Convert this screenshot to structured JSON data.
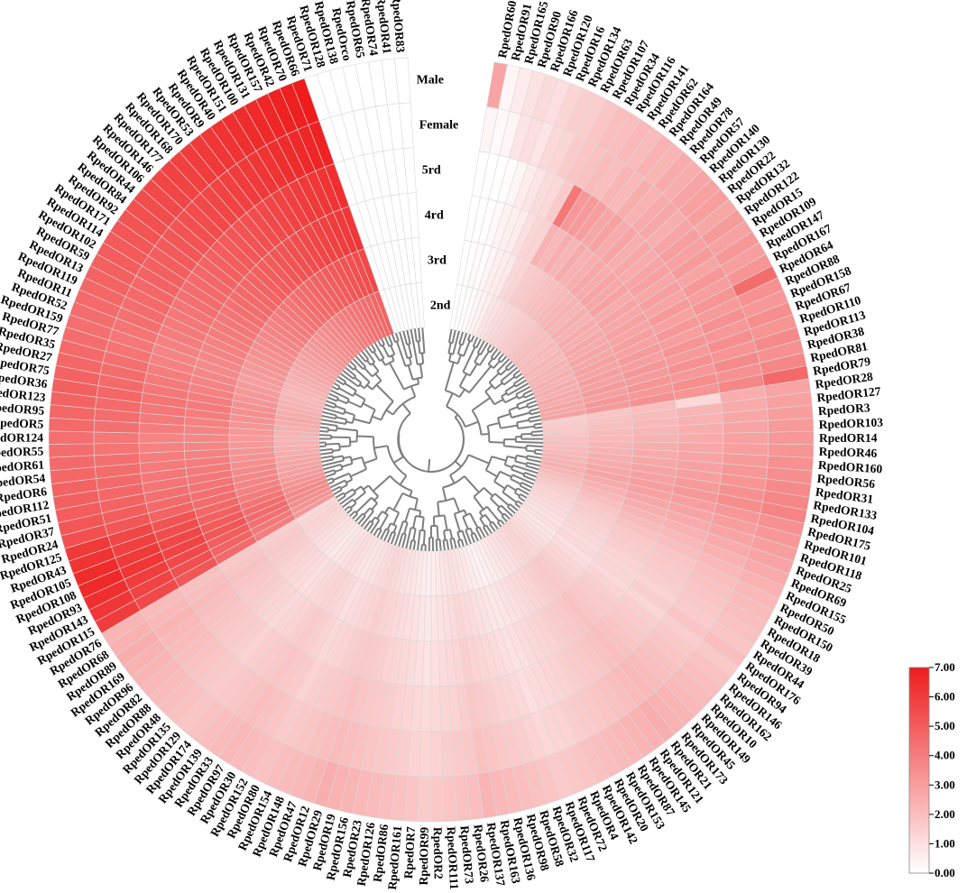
{
  "chart_data": {
    "type": "heatmap",
    "layout": "circular",
    "tracks": [
      "2nd",
      "3rd",
      "4rd",
      "5rd",
      "Female",
      "Male"
    ],
    "legend": {
      "min": 0,
      "max": 7,
      "ticks": [
        "0.00",
        "1.00",
        "2.00",
        "3.00",
        "4.00",
        "5.00",
        "6.00",
        "7.00"
      ],
      "low_color": "#ffffff",
      "high_color": "#ee1c1c",
      "placement": "bottom-right"
    },
    "genes": [
      "RpedOR60",
      "RpedOR91",
      "RpedOR165",
      "RpedOR90",
      "RpedOR166",
      "RpedOR120",
      "RpedOR16",
      "RpedOR134",
      "RpedOR63",
      "RpedOR107",
      "RpedOR34",
      "RpedOR116",
      "RpedOR141",
      "RpedOR62",
      "RpedOR164",
      "RpedOR49",
      "RpedOR78",
      "RpedOR57",
      "RpedOR140",
      "RpedOR130",
      "RpedOR22",
      "RpedOR132",
      "RpedOR122",
      "RpedOR15",
      "RpedOR109",
      "RpedOR147",
      "RpedOR167",
      "RpedOR64",
      "RpedOR88",
      "RpedOR158",
      "RpedOR67",
      "RpedOR110",
      "RpedOR113",
      "RpedOR38",
      "RpedOR81",
      "RpedOR79",
      "RpedOR28",
      "RpedOR127",
      "RpedOR3",
      "RpedOR103",
      "RpedOR14",
      "RpedOR46",
      "RpedOR160",
      "RpedOR56",
      "RpedOR31",
      "RpedOR133",
      "RpedOR104",
      "RpedOR175",
      "RpedOR101",
      "RpedOR118",
      "RpedOR25",
      "RpedOR69",
      "RpedOR155",
      "RpedOR50",
      "RpedOR150",
      "RpedOR18",
      "RpedOR39",
      "RpedOR44",
      "RpedOR176",
      "RpedOR94",
      "RpedOR146",
      "RpedOR162",
      "RpedOR10",
      "RpedOR149",
      "RpedOR45",
      "RpedOR173",
      "RpedOR21",
      "RpedOR121",
      "RpedOR145",
      "RpedOR87",
      "RpedOR153",
      "RpedOR20",
      "RpedOR142",
      "RpedOR4",
      "RpedOR72",
      "RpedOR117",
      "RpedOR32",
      "RpedOR58",
      "RpedOR98",
      "RpedOR136",
      "RpedOR163",
      "RpedOR137",
      "RpedOR26",
      "RpedOR73",
      "RpedOR111",
      "RpedOR2",
      "RpedOR99",
      "RpedOR7",
      "RpedOR161",
      "RpedOR86",
      "RpedOR126",
      "RpedOR23",
      "RpedOR156",
      "RpedOR19",
      "RpedOR29",
      "RpedOR12",
      "RpedOR47",
      "RpedOR148",
      "RpedOR154",
      "RpedOR80",
      "RpedOR152",
      "RpedOR30",
      "RpedOR97",
      "RpedOR33",
      "RpedOR139",
      "RpedOR174",
      "RpedOR129",
      "RpedOR135",
      "RpedOR48",
      "RpedOR88",
      "RpedOR82",
      "RpedOR96",
      "RpedOR169",
      "RpedOR89",
      "RpedOR68",
      "RpedOR76",
      "RpedOR115",
      "RpedOR143",
      "RpedOR93",
      "RpedOR108",
      "RpedOR105",
      "RpedOR43",
      "RpedOR125",
      "RpedOR24",
      "RpedOR37",
      "RpedOR51",
      "RpedOR112",
      "RpedOR6",
      "RpedOR54",
      "RpedOR61",
      "RpedOR55",
      "RpedOR124",
      "RpedOR5",
      "RpedOR95",
      "RpedOR123",
      "RpedOR36",
      "RpedOR75",
      "RpedOR27",
      "RpedOR35",
      "RpedOR77",
      "RpedOR159",
      "RpedOR52",
      "RpedOR11",
      "RpedOR119",
      "RpedOR13",
      "RpedOR59",
      "RpedOR102",
      "RpedOR114",
      "RpedOR171",
      "RpedOR92",
      "RpedOR84",
      "RpedOR44",
      "RpedOR106",
      "RpedOR146",
      "RpedOR177",
      "RpedOR168",
      "RpedOR170",
      "RpedOR53",
      "RpedOR9",
      "RpedOR40",
      "RpedOR151",
      "RpedOR100",
      "RpedOR131",
      "RpedOR157",
      "RpedOR42",
      "RpedOR70",
      "RpedOR66",
      "RpedOR71",
      "RpedOR128",
      "RpedOR138",
      "RpedOrco",
      "RpedOR65",
      "RpedOR74",
      "RpedOR41",
      "RpedOR83"
    ],
    "values": [
      [
        0.0,
        0.0,
        0.0,
        0.0,
        0.3,
        2.8
      ],
      [
        0.0,
        0.0,
        0.0,
        0.0,
        0.2,
        0.3
      ],
      [
        0.1,
        0.2,
        0.0,
        0.0,
        0.3,
        0.6
      ],
      [
        0.1,
        0.1,
        0.2,
        0.1,
        0.8,
        0.9
      ],
      [
        0.3,
        0.3,
        0.4,
        0.3,
        1.0,
        1.1
      ],
      [
        0.4,
        0.5,
        0.5,
        0.6,
        0.8,
        1.0
      ],
      [
        0.5,
        0.6,
        0.6,
        0.8,
        1.2,
        1.3
      ],
      [
        0.8,
        0.7,
        1.0,
        1.1,
        1.3,
        1.5
      ],
      [
        0.9,
        1.2,
        1.3,
        1.2,
        1.6,
        1.5
      ],
      [
        1.1,
        1.3,
        1.4,
        1.6,
        1.8,
        1.8
      ],
      [
        1.2,
        1.6,
        2.4,
        4.2,
        1.9,
        2.0
      ],
      [
        1.3,
        1.7,
        2.2,
        3.2,
        2.1,
        2.0
      ],
      [
        1.4,
        1.8,
        2.5,
        3.1,
        2.0,
        2.2
      ],
      [
        1.5,
        1.9,
        2.3,
        3.0,
        2.3,
        2.1
      ],
      [
        1.6,
        2.0,
        2.6,
        2.7,
        2.2,
        2.4
      ],
      [
        1.7,
        2.1,
        2.4,
        2.9,
        2.5,
        2.3
      ],
      [
        1.8,
        2.2,
        2.5,
        2.6,
        2.4,
        2.6
      ],
      [
        1.9,
        2.3,
        2.7,
        2.8,
        2.6,
        2.5
      ],
      [
        2.0,
        2.4,
        2.6,
        2.5,
        2.7,
        2.8
      ],
      [
        2.1,
        2.3,
        2.8,
        2.7,
        2.5,
        2.9
      ],
      [
        2.0,
        2.5,
        2.7,
        2.6,
        2.8,
        3.0
      ],
      [
        2.2,
        2.4,
        2.9,
        2.8,
        3.0,
        2.7
      ],
      [
        2.1,
        2.6,
        2.6,
        2.9,
        2.9,
        3.1
      ],
      [
        2.3,
        2.5,
        2.8,
        2.7,
        3.1,
        2.9
      ],
      [
        2.2,
        2.7,
        2.7,
        3.0,
        2.8,
        3.2
      ],
      [
        2.4,
        2.6,
        2.9,
        2.8,
        3.2,
        3.0
      ],
      [
        2.3,
        2.8,
        2.8,
        3.1,
        3.0,
        3.3
      ],
      [
        2.5,
        2.7,
        3.0,
        2.9,
        3.3,
        4.5
      ],
      [
        2.4,
        2.9,
        2.9,
        3.2,
        3.1,
        3.4
      ],
      [
        2.6,
        2.8,
        3.1,
        3.0,
        3.4,
        3.2
      ],
      [
        2.5,
        3.0,
        3.0,
        3.3,
        3.2,
        3.5
      ],
      [
        2.7,
        2.9,
        3.2,
        3.1,
        3.5,
        3.3
      ],
      [
        2.6,
        3.1,
        3.1,
        3.4,
        3.3,
        3.6
      ],
      [
        2.8,
        3.0,
        3.3,
        3.2,
        3.6,
        3.4
      ],
      [
        2.7,
        3.2,
        3.2,
        3.5,
        3.4,
        3.7
      ],
      [
        2.9,
        3.1,
        3.4,
        3.3,
        3.7,
        4.6
      ],
      [
        1.5,
        1.8,
        2.0,
        1.2,
        2.5,
        2.8
      ],
      [
        1.6,
        1.9,
        2.1,
        2.3,
        2.6,
        2.9
      ],
      [
        1.7,
        2.0,
        2.2,
        2.4,
        2.7,
        3.0
      ],
      [
        1.8,
        2.1,
        2.3,
        2.5,
        2.8,
        3.1
      ],
      [
        1.9,
        2.2,
        2.4,
        2.6,
        2.9,
        3.2
      ],
      [
        2.0,
        2.3,
        2.5,
        2.7,
        3.0,
        3.3
      ],
      [
        2.1,
        2.4,
        2.6,
        2.8,
        3.1,
        3.4
      ],
      [
        2.2,
        2.5,
        2.7,
        2.9,
        3.2,
        3.5
      ],
      [
        2.3,
        2.6,
        2.8,
        3.0,
        3.3,
        3.6
      ],
      [
        2.4,
        2.7,
        2.9,
        3.1,
        3.4,
        3.7
      ],
      [
        2.5,
        2.8,
        3.0,
        3.2,
        3.5,
        3.8
      ],
      [
        2.3,
        2.6,
        2.9,
        3.0,
        3.2,
        3.4
      ],
      [
        2.1,
        2.4,
        2.7,
        2.8,
        3.0,
        3.2
      ],
      [
        1.9,
        2.2,
        2.5,
        2.6,
        2.8,
        3.0
      ],
      [
        1.7,
        2.0,
        2.3,
        2.4,
        2.6,
        2.8
      ],
      [
        1.5,
        1.8,
        2.1,
        2.2,
        2.4,
        2.6
      ],
      [
        1.4,
        1.6,
        1.9,
        2.0,
        2.2,
        2.4
      ],
      [
        1.3,
        1.5,
        1.7,
        1.8,
        2.0,
        2.2
      ],
      [
        1.2,
        1.4,
        1.6,
        1.7,
        1.9,
        2.1
      ],
      [
        1.1,
        1.3,
        1.5,
        1.6,
        1.8,
        2.0
      ],
      [
        1.0,
        1.2,
        1.4,
        1.5,
        1.7,
        1.9
      ],
      [
        0.9,
        1.1,
        1.3,
        1.4,
        1.6,
        1.8
      ],
      [
        1.0,
        1.2,
        1.3,
        1.5,
        1.8,
        2.0
      ],
      [
        0.8,
        1.0,
        1.2,
        1.3,
        1.5,
        1.7
      ],
      [
        0.9,
        1.1,
        1.4,
        1.5,
        1.7,
        1.9
      ],
      [
        1.0,
        1.3,
        1.5,
        1.6,
        1.8,
        2.0
      ],
      [
        1.1,
        1.4,
        1.6,
        1.7,
        1.9,
        2.1
      ],
      [
        1.2,
        1.5,
        1.7,
        1.8,
        2.0,
        2.2
      ],
      [
        1.3,
        1.6,
        1.8,
        1.9,
        2.1,
        2.3
      ],
      [
        1.4,
        1.7,
        1.9,
        2.0,
        2.2,
        2.4
      ],
      [
        1.3,
        1.6,
        1.8,
        1.9,
        2.1,
        2.5
      ],
      [
        1.2,
        1.5,
        1.7,
        1.8,
        2.0,
        2.4
      ],
      [
        1.1,
        1.4,
        1.6,
        1.7,
        1.9,
        2.3
      ],
      [
        1.0,
        1.3,
        1.5,
        1.6,
        1.8,
        2.2
      ],
      [
        0.9,
        1.2,
        1.4,
        1.5,
        1.7,
        2.1
      ],
      [
        0.8,
        1.1,
        1.3,
        1.4,
        1.6,
        2.0
      ],
      [
        0.7,
        1.0,
        1.2,
        1.3,
        1.5,
        1.9
      ],
      [
        0.6,
        0.9,
        1.1,
        1.2,
        1.4,
        1.8
      ],
      [
        0.5,
        0.8,
        1.0,
        1.1,
        1.3,
        1.7
      ],
      [
        0.4,
        0.7,
        0.9,
        1.0,
        1.2,
        1.6
      ],
      [
        0.5,
        0.8,
        1.0,
        1.2,
        1.4,
        1.8
      ],
      [
        0.6,
        0.9,
        1.1,
        1.3,
        1.5,
        1.9
      ],
      [
        0.7,
        1.0,
        1.2,
        1.4,
        1.6,
        2.0
      ],
      [
        0.8,
        1.1,
        1.3,
        1.5,
        1.7,
        2.1
      ],
      [
        0.9,
        1.2,
        1.4,
        1.6,
        1.8,
        2.2
      ],
      [
        1.0,
        1.3,
        1.5,
        1.7,
        1.9,
        2.3
      ],
      [
        0.9,
        1.1,
        1.3,
        1.5,
        1.7,
        2.0
      ],
      [
        0.8,
        1.0,
        1.2,
        1.4,
        1.6,
        1.9
      ],
      [
        0.7,
        0.9,
        1.1,
        1.3,
        1.5,
        1.8
      ],
      [
        0.6,
        0.8,
        1.0,
        1.2,
        1.4,
        1.7
      ],
      [
        0.5,
        0.7,
        0.9,
        1.1,
        1.3,
        1.6
      ],
      [
        0.6,
        0.8,
        1.0,
        1.2,
        1.4,
        1.8
      ],
      [
        0.7,
        0.9,
        1.1,
        1.3,
        1.5,
        1.9
      ],
      [
        0.8,
        1.0,
        1.2,
        1.4,
        1.6,
        2.0
      ],
      [
        0.9,
        1.1,
        1.3,
        1.5,
        1.7,
        2.1
      ],
      [
        1.0,
        1.2,
        1.4,
        1.6,
        1.8,
        2.2
      ],
      [
        1.1,
        1.3,
        1.5,
        1.7,
        1.9,
        2.3
      ],
      [
        1.2,
        1.4,
        1.6,
        1.8,
        2.0,
        2.4
      ],
      [
        1.3,
        1.5,
        1.7,
        1.9,
        2.1,
        2.5
      ],
      [
        1.2,
        1.4,
        1.6,
        1.8,
        2.0,
        2.3
      ],
      [
        1.1,
        1.3,
        1.5,
        1.7,
        1.9,
        2.2
      ],
      [
        1.0,
        1.2,
        1.4,
        1.6,
        1.8,
        2.1
      ],
      [
        0.9,
        1.1,
        1.3,
        1.5,
        1.7,
        2.0
      ],
      [
        0.8,
        1.0,
        1.2,
        1.4,
        1.6,
        1.9
      ],
      [
        0.9,
        1.2,
        1.4,
        1.6,
        1.8,
        2.0
      ],
      [
        1.0,
        1.3,
        1.5,
        1.7,
        1.9,
        2.1
      ],
      [
        1.1,
        1.4,
        1.6,
        1.8,
        2.0,
        2.2
      ],
      [
        1.0,
        1.3,
        1.5,
        1.7,
        1.9,
        2.1
      ],
      [
        0.9,
        1.2,
        1.4,
        1.6,
        1.8,
        2.0
      ],
      [
        0.8,
        1.1,
        1.3,
        1.5,
        1.7,
        1.9
      ],
      [
        0.7,
        1.0,
        1.2,
        1.4,
        1.6,
        1.8
      ],
      [
        0.8,
        1.1,
        1.3,
        1.5,
        1.7,
        1.9
      ],
      [
        0.9,
        1.2,
        1.4,
        1.6,
        1.8,
        2.0
      ],
      [
        1.0,
        1.3,
        1.5,
        1.7,
        1.9,
        2.1
      ],
      [
        1.1,
        1.4,
        1.6,
        1.8,
        2.0,
        2.2
      ],
      [
        1.2,
        1.5,
        1.7,
        1.9,
        2.1,
        2.3
      ],
      [
        1.3,
        1.6,
        1.8,
        2.0,
        2.2,
        2.4
      ],
      [
        1.4,
        1.7,
        1.9,
        2.1,
        2.3,
        2.5
      ],
      [
        1.3,
        1.6,
        1.8,
        2.0,
        2.2,
        2.4
      ],
      [
        1.2,
        1.5,
        1.7,
        1.9,
        2.1,
        2.3
      ],
      [
        3.2,
        4.0,
        4.6,
        5.2,
        5.6,
        6.0
      ],
      [
        3.4,
        4.2,
        4.8,
        5.4,
        5.8,
        6.2
      ],
      [
        3.5,
        4.4,
        5.0,
        5.6,
        6.0,
        6.4
      ],
      [
        3.6,
        4.6,
        5.2,
        5.8,
        6.2,
        6.6
      ],
      [
        3.7,
        4.5,
        5.1,
        5.7,
        6.1,
        6.5
      ],
      [
        3.5,
        4.3,
        4.9,
        5.5,
        5.9,
        6.3
      ],
      [
        3.3,
        4.1,
        4.7,
        5.3,
        5.7,
        6.1
      ],
      [
        3.1,
        3.9,
        4.5,
        4.8,
        5.2,
        5.4
      ],
      [
        3.0,
        3.8,
        4.4,
        4.6,
        5.0,
        5.2
      ],
      [
        2.9,
        3.7,
        4.3,
        4.4,
        4.8,
        5.0
      ],
      [
        2.8,
        3.6,
        4.2,
        4.3,
        4.7,
        4.9
      ],
      [
        2.7,
        3.5,
        4.1,
        4.2,
        4.6,
        4.8
      ],
      [
        2.6,
        3.4,
        4.0,
        4.1,
        4.5,
        4.7
      ],
      [
        2.5,
        3.3,
        3.9,
        4.0,
        4.4,
        4.6
      ],
      [
        2.4,
        3.2,
        3.8,
        3.9,
        4.3,
        4.5
      ],
      [
        2.3,
        3.1,
        3.7,
        3.8,
        4.2,
        4.4
      ],
      [
        2.4,
        3.2,
        3.8,
        4.0,
        4.4,
        4.6
      ],
      [
        2.5,
        3.3,
        3.9,
        4.1,
        4.5,
        4.7
      ],
      [
        2.6,
        3.4,
        4.0,
        4.2,
        4.6,
        4.8
      ],
      [
        2.7,
        3.5,
        4.1,
        4.3,
        4.7,
        4.9
      ],
      [
        2.6,
        3.4,
        4.0,
        4.2,
        4.6,
        4.8
      ],
      [
        2.5,
        3.3,
        3.9,
        4.1,
        4.5,
        4.7
      ],
      [
        2.4,
        3.2,
        3.8,
        4.0,
        4.4,
        4.6
      ],
      [
        2.3,
        3.1,
        3.7,
        3.9,
        4.3,
        4.5
      ],
      [
        2.2,
        3.0,
        3.6,
        3.8,
        4.2,
        4.4
      ],
      [
        2.3,
        3.1,
        3.7,
        3.9,
        4.3,
        4.5
      ],
      [
        2.4,
        3.2,
        3.8,
        4.0,
        4.4,
        4.6
      ],
      [
        2.5,
        3.3,
        3.9,
        4.1,
        4.5,
        4.7
      ],
      [
        2.6,
        3.4,
        4.0,
        4.2,
        4.6,
        4.8
      ],
      [
        2.7,
        3.5,
        4.1,
        4.3,
        4.7,
        4.9
      ],
      [
        2.8,
        3.6,
        4.2,
        4.4,
        4.8,
        5.0
      ],
      [
        2.9,
        3.7,
        4.3,
        4.5,
        4.9,
        5.1
      ],
      [
        3.0,
        3.8,
        4.4,
        4.6,
        5.0,
        5.2
      ],
      [
        3.1,
        3.9,
        4.5,
        4.7,
        5.1,
        5.3
      ],
      [
        3.2,
        4.0,
        4.6,
        4.8,
        5.2,
        5.4
      ],
      [
        3.3,
        4.1,
        4.7,
        4.9,
        5.3,
        5.5
      ],
      [
        3.4,
        4.2,
        4.8,
        5.0,
        5.4,
        5.6
      ],
      [
        3.5,
        4.3,
        4.9,
        5.1,
        5.5,
        5.7
      ],
      [
        3.6,
        4.4,
        5.0,
        5.2,
        5.6,
        5.8
      ],
      [
        3.7,
        4.5,
        5.1,
        5.3,
        5.7,
        5.9
      ],
      [
        3.8,
        4.6,
        5.2,
        5.4,
        5.8,
        6.0
      ],
      [
        3.9,
        4.7,
        5.3,
        5.5,
        5.9,
        6.1
      ],
      [
        4.0,
        4.8,
        5.4,
        5.6,
        6.0,
        6.2
      ],
      [
        4.1,
        4.9,
        5.5,
        5.7,
        6.1,
        6.3
      ],
      [
        4.2,
        5.0,
        5.6,
        5.8,
        6.2,
        6.4
      ],
      [
        4.3,
        5.1,
        5.7,
        5.9,
        6.3,
        6.5
      ],
      [
        4.4,
        5.2,
        5.8,
        6.0,
        6.4,
        6.6
      ],
      [
        4.5,
        5.3,
        5.9,
        6.1,
        6.5,
        6.7
      ],
      [
        4.6,
        5.4,
        6.0,
        6.2,
        6.6,
        6.8
      ],
      [
        4.7,
        5.5,
        6.1,
        6.3,
        6.7,
        6.9
      ],
      [
        4.8,
        5.6,
        6.2,
        6.4,
        6.8,
        7.0
      ]
    ]
  }
}
